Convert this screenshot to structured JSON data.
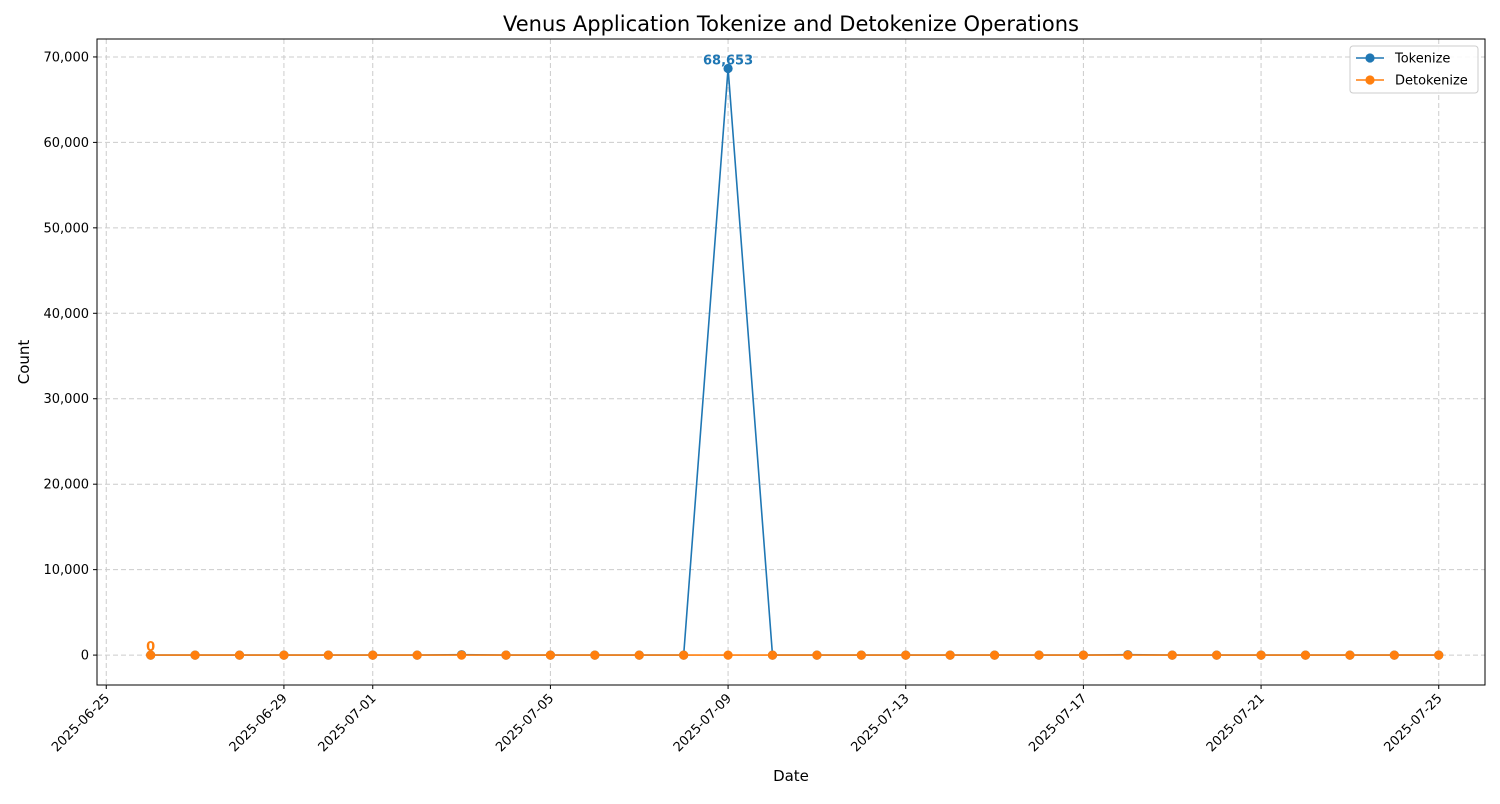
{
  "chart_data": {
    "type": "line",
    "title": "Venus Application Tokenize and Detokenize Operations",
    "xlabel": "Date",
    "ylabel": "Count",
    "x_tick_labels": [
      "2025-06-25",
      "2025-06-29",
      "2025-07-01",
      "2025-07-05",
      "2025-07-09",
      "2025-07-13",
      "2025-07-17",
      "2025-07-21",
      "2025-07-25"
    ],
    "x_tick_dates": [
      "2025-06-25",
      "2025-06-29",
      "2025-07-01",
      "2025-07-05",
      "2025-07-09",
      "2025-07-13",
      "2025-07-17",
      "2025-07-21",
      "2025-07-25"
    ],
    "x_range": [
      "2025-06-24T19:00",
      "2025-07-26T01:00"
    ],
    "y_ticks": [
      0,
      10000,
      20000,
      30000,
      40000,
      50000,
      60000,
      70000
    ],
    "y_tick_labels": [
      "0",
      "10,000",
      "20,000",
      "30,000",
      "40,000",
      "50,000",
      "60,000",
      "70,000"
    ],
    "ylim": [
      -3500,
      72100
    ],
    "grid": true,
    "legend_position": "top-right",
    "x": [
      "2025-06-26",
      "2025-06-27",
      "2025-06-28",
      "2025-06-29",
      "2025-06-30",
      "2025-07-01",
      "2025-07-02",
      "2025-07-03",
      "2025-07-04",
      "2025-07-05",
      "2025-07-06",
      "2025-07-07",
      "2025-07-08",
      "2025-07-09",
      "2025-07-10",
      "2025-07-11",
      "2025-07-12",
      "2025-07-13",
      "2025-07-14",
      "2025-07-15",
      "2025-07-16",
      "2025-07-17",
      "2025-07-18",
      "2025-07-19",
      "2025-07-20",
      "2025-07-21",
      "2025-07-22",
      "2025-07-23",
      "2025-07-24",
      "2025-07-25"
    ],
    "series": [
      {
        "name": "Tokenize",
        "color": "#1f77b4",
        "values": [
          0,
          0,
          0,
          0,
          0,
          0,
          0,
          50,
          0,
          0,
          0,
          0,
          0,
          68653,
          0,
          0,
          0,
          0,
          0,
          0,
          0,
          0,
          50,
          0,
          0,
          0,
          0,
          0,
          0,
          0
        ]
      },
      {
        "name": "Detokenize",
        "color": "#ff7f0e",
        "values": [
          0,
          0,
          0,
          0,
          0,
          0,
          0,
          0,
          0,
          0,
          0,
          0,
          0,
          0,
          0,
          0,
          0,
          0,
          0,
          0,
          0,
          0,
          0,
          0,
          0,
          0,
          0,
          0,
          0,
          0
        ]
      }
    ],
    "annotations": [
      {
        "series": "Tokenize",
        "x": "2025-07-09",
        "y": 68653,
        "text": "68,653",
        "color": "#1f77b4"
      },
      {
        "series": "Detokenize",
        "x": "2025-06-26",
        "y": 0,
        "text": "0",
        "color": "#ff7f0e"
      }
    ]
  }
}
